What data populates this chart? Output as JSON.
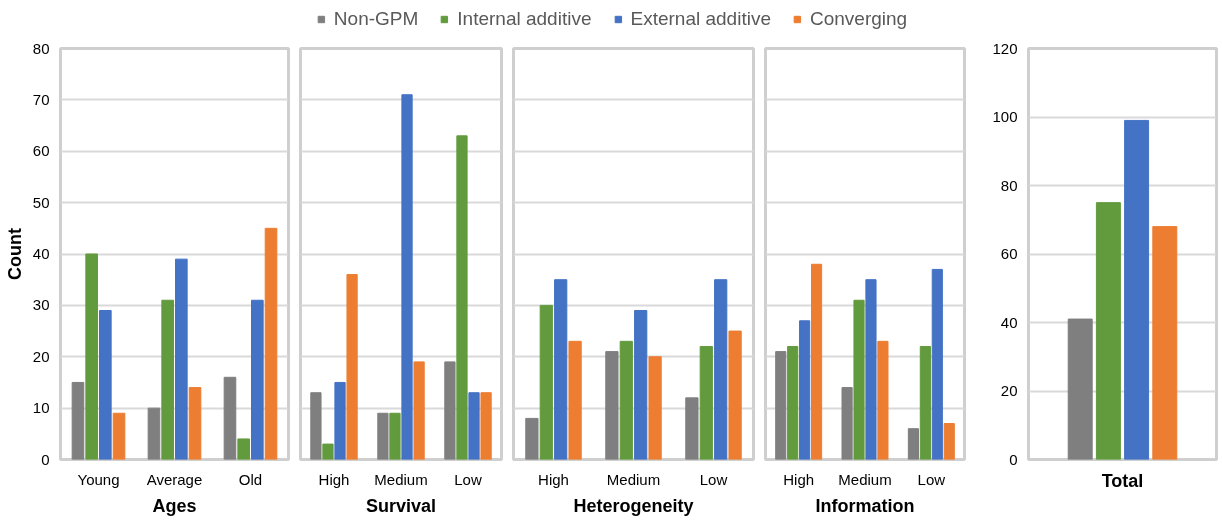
{
  "chart_data": [
    {
      "type": "bar",
      "xlabel": "Ages",
      "ylabel": "Count",
      "categories": [
        "Young",
        "Average",
        "Old"
      ],
      "ylim": [
        0,
        80
      ],
      "yticks": [
        0,
        10,
        20,
        30,
        40,
        50,
        60,
        70,
        80
      ],
      "grid": "y",
      "legend": "top",
      "series": [
        {
          "name": "Non-GPM",
          "color": "#7f7f7f",
          "values": [
            15,
            10,
            16
          ]
        },
        {
          "name": "Internal additive",
          "color": "#629b3e",
          "values": [
            40,
            31,
            4
          ]
        },
        {
          "name": "External additive",
          "color": "#4472c4",
          "values": [
            29,
            39,
            31
          ]
        },
        {
          "name": "Converging",
          "color": "#ed7d31",
          "values": [
            9,
            14,
            45
          ]
        }
      ]
    },
    {
      "type": "bar",
      "xlabel": "Survival",
      "categories": [
        "High",
        "Medium",
        "Low"
      ],
      "ylim": [
        0,
        80
      ],
      "yticks": [
        0,
        10,
        20,
        30,
        40,
        50,
        60,
        70,
        80
      ],
      "grid": "y",
      "tick_labels": "x",
      "series": [
        {
          "color": "#7f7f7f",
          "values": [
            13,
            9,
            19
          ]
        },
        {
          "color": "#629b3e",
          "values": [
            3,
            9,
            63
          ]
        },
        {
          "color": "#4472c4",
          "values": [
            15,
            71,
            13
          ]
        },
        {
          "color": "#ed7d31",
          "values": [
            36,
            19,
            13
          ]
        }
      ]
    },
    {
      "type": "bar",
      "xlabel": "Heterogeneity",
      "categories": [
        "High",
        "Medium",
        "Low"
      ],
      "ylim": [
        0,
        80
      ],
      "yticks": [
        0,
        10,
        20,
        30,
        40,
        50,
        60,
        70,
        80
      ],
      "grid": "y",
      "tick_labels": "x",
      "series": [
        {
          "color": "#7f7f7f",
          "values": [
            8,
            21,
            12
          ]
        },
        {
          "color": "#629b3e",
          "values": [
            30,
            23,
            22
          ]
        },
        {
          "color": "#4472c4",
          "values": [
            35,
            29,
            35
          ]
        },
        {
          "color": "#ed7d31",
          "values": [
            23,
            20,
            25
          ]
        }
      ]
    },
    {
      "type": "bar",
      "xlabel": "Information",
      "categories": [
        "High",
        "Medium",
        "Low"
      ],
      "ylim": [
        0,
        80
      ],
      "yticks": [
        0,
        10,
        20,
        30,
        40,
        50,
        60,
        70,
        80
      ],
      "grid": "y",
      "tick_labels": "x",
      "series": [
        {
          "color": "#7f7f7f",
          "values": [
            21,
            14,
            6
          ]
        },
        {
          "color": "#629b3e",
          "values": [
            22,
            31,
            22
          ]
        },
        {
          "color": "#4472c4",
          "values": [
            27,
            35,
            37
          ]
        },
        {
          "color": "#ed7d31",
          "values": [
            38,
            23,
            7
          ]
        }
      ]
    },
    {
      "type": "bar",
      "xlabel": "Total",
      "categories": [
        null
      ],
      "ylim": [
        0,
        120
      ],
      "yticks": [
        0,
        20,
        40,
        60,
        80,
        100,
        120
      ],
      "grid": "y",
      "series": [
        {
          "color": "#7f7f7f",
          "values": [
            41
          ]
        },
        {
          "color": "#629b3e",
          "values": [
            75
          ]
        },
        {
          "color": "#4472c4",
          "values": [
            99
          ]
        },
        {
          "color": "#ed7d31",
          "values": [
            68
          ]
        }
      ]
    }
  ]
}
